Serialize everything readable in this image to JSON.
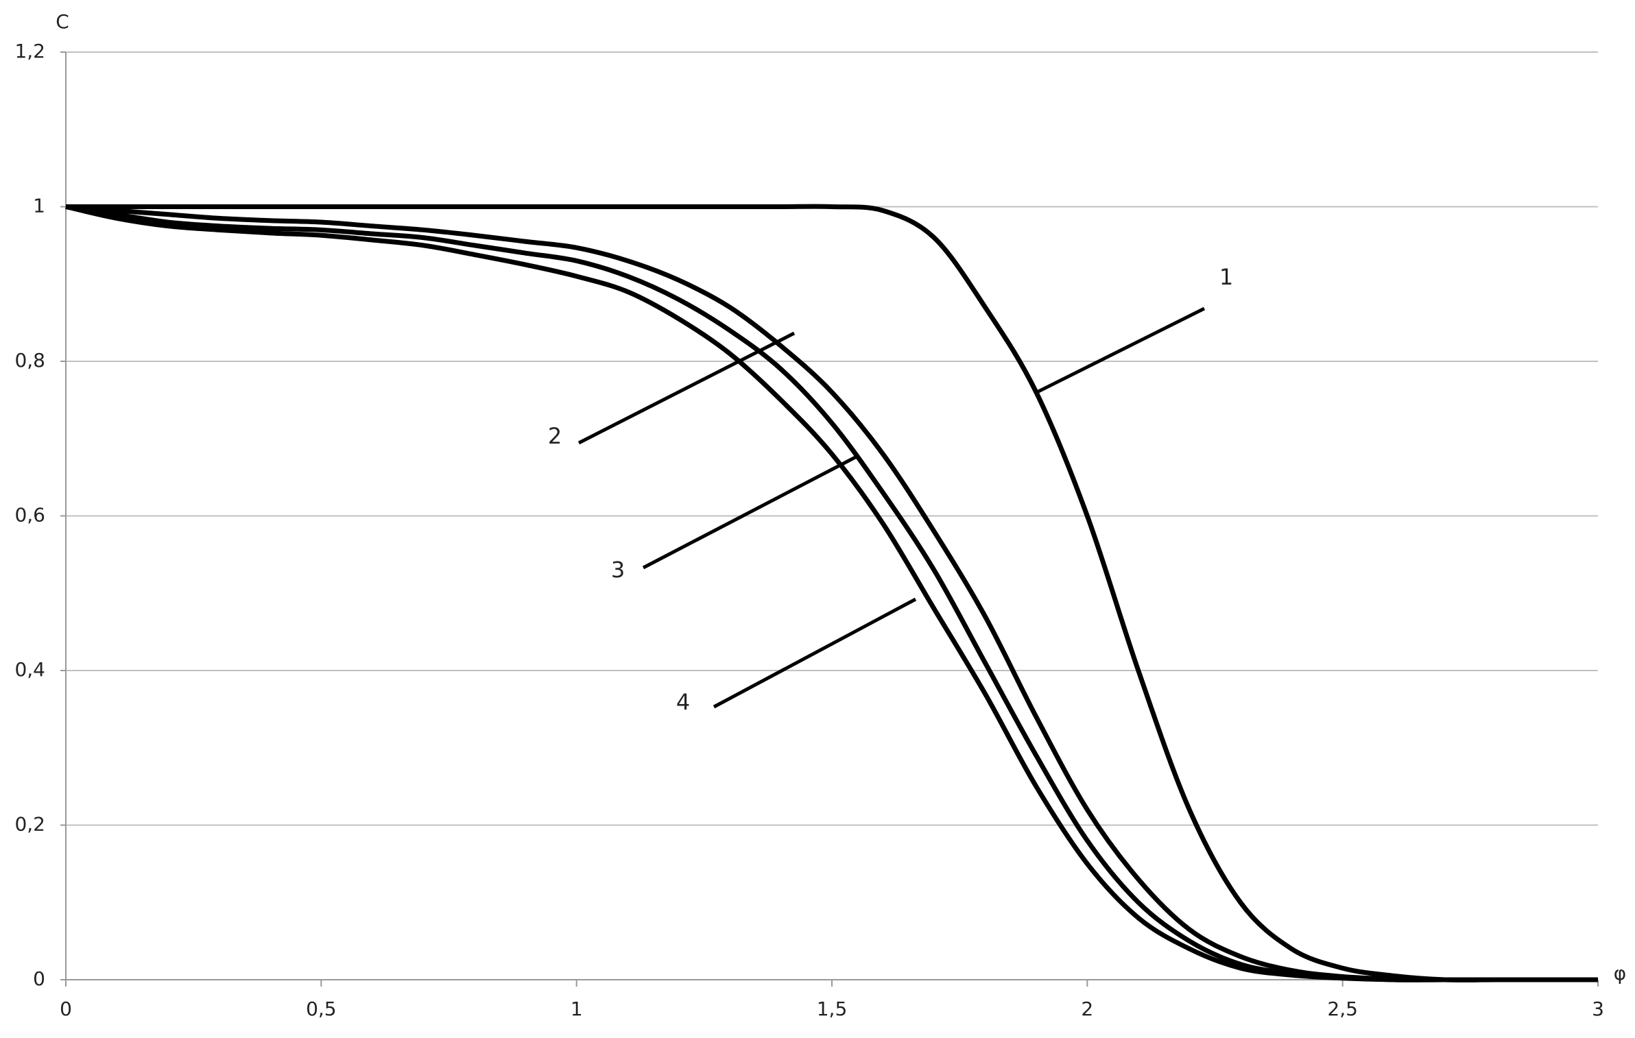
{
  "chart_data": {
    "type": "line",
    "ylabel": "C",
    "xlabel": "φ",
    "x": [
      0,
      0.1,
      0.2,
      0.3,
      0.4,
      0.5,
      0.6,
      0.7,
      0.8,
      0.9,
      1,
      1.1,
      1.2,
      1.3,
      1.4,
      1.5,
      1.6,
      1.7,
      1.8,
      1.9,
      2,
      2.1,
      2.2,
      2.3,
      2.4,
      2.5,
      2.6,
      2.7,
      2.8,
      2.9,
      3
    ],
    "series": [
      {
        "name": "1",
        "color": "#000000",
        "values": [
          1,
          1,
          1,
          1,
          1,
          1,
          1,
          1,
          1,
          1,
          1,
          1,
          1,
          1,
          1,
          1,
          0.995,
          0.96,
          0.87,
          0.76,
          0.6,
          0.4,
          0.22,
          0.1,
          0.04,
          0.015,
          0.005,
          0,
          0,
          0,
          0
        ]
      },
      {
        "name": "2",
        "color": "#000000",
        "values": [
          1,
          0.995,
          0.99,
          0.985,
          0.982,
          0.98,
          0.975,
          0.97,
          0.963,
          0.955,
          0.947,
          0.93,
          0.905,
          0.87,
          0.82,
          0.76,
          0.68,
          0.58,
          0.47,
          0.34,
          0.22,
          0.13,
          0.065,
          0.03,
          0.012,
          0.004,
          0.001,
          0,
          0,
          0,
          0
        ]
      },
      {
        "name": "3",
        "color": "#000000",
        "values": [
          1,
          0.99,
          0.98,
          0.975,
          0.972,
          0.97,
          0.965,
          0.96,
          0.95,
          0.94,
          0.93,
          0.91,
          0.88,
          0.84,
          0.79,
          0.72,
          0.63,
          0.53,
          0.41,
          0.29,
          0.18,
          0.1,
          0.05,
          0.02,
          0.008,
          0.003,
          0,
          0,
          0,
          0,
          0
        ]
      },
      {
        "name": "4",
        "color": "#000000",
        "values": [
          1,
          0.985,
          0.975,
          0.97,
          0.966,
          0.963,
          0.957,
          0.95,
          0.938,
          0.925,
          0.91,
          0.89,
          0.855,
          0.81,
          0.75,
          0.68,
          0.59,
          0.48,
          0.37,
          0.25,
          0.15,
          0.08,
          0.04,
          0.015,
          0.006,
          0.002,
          0,
          0,
          0,
          0,
          0
        ]
      }
    ],
    "xlim": [
      0,
      3
    ],
    "xticks": [
      0,
      {
        "value": 0.5,
        "label": "0,5"
      },
      1,
      {
        "value": 1.5,
        "label": "1,5"
      },
      2,
      {
        "value": 2.5,
        "label": "2,5"
      },
      3
    ],
    "ylim": [
      0,
      1.2
    ],
    "yticks": [
      0,
      {
        "value": 0.2,
        "label": "0,2"
      },
      {
        "value": 0.4,
        "label": "0,4"
      },
      {
        "value": 0.6,
        "label": "0,6"
      },
      {
        "value": 0.8,
        "label": "0,8"
      },
      1,
      {
        "value": 1.2,
        "label": "1,2"
      }
    ],
    "grid": true
  }
}
